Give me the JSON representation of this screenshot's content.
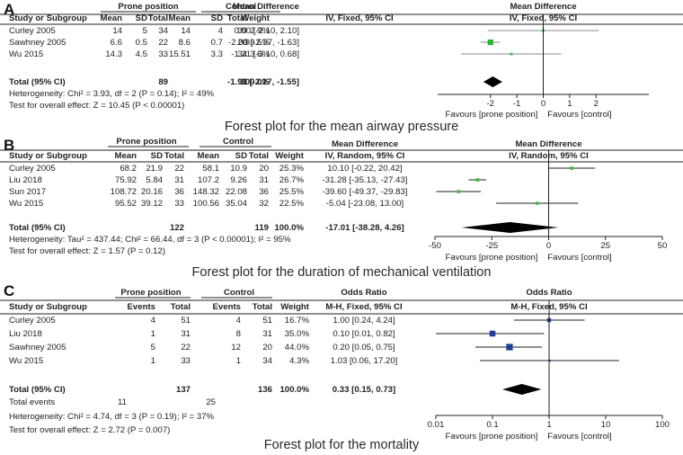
{
  "chart_data": [
    {
      "type": "table",
      "panel": "A",
      "title": "Forest plot for the mean airway pressure",
      "group_headers": [
        "Prone position",
        "Control"
      ],
      "columns": [
        "Study or Subgroup",
        "Mean",
        "SD",
        "Total",
        "Mean",
        "SD",
        "Total",
        "Weight",
        "Mean Difference"
      ],
      "method": "IV, Fixed, 95% CI",
      "rows": [
        {
          "study": "Curley 2005",
          "cells": [
            "14",
            "5",
            "34",
            "14",
            "4",
            "39",
            "2.9%",
            "0.00 [-2.10, 2.10]"
          ],
          "estimate": 0.0,
          "ci": [
            -2.1,
            2.1
          ],
          "weight": 2.9,
          "color": "#4cc04c"
        },
        {
          "study": "Sawhney 2005",
          "cells": [
            "6.6",
            "0.5",
            "22",
            "8.6",
            "0.7",
            "20",
            "93.5%",
            "-2.00 [-2.37, -1.63]"
          ],
          "estimate": -2.0,
          "ci": [
            -2.37,
            -1.63
          ],
          "weight": 93.5,
          "color": "#2ab32a"
        },
        {
          "study": "Wu 2015",
          "cells": [
            "14.3",
            "4.5",
            "33",
            "15.51",
            "3.3",
            "34",
            "3.6%",
            "-1.21 [-3.10, 0.68]"
          ],
          "estimate": -1.21,
          "ci": [
            -3.1,
            0.68
          ],
          "weight": 3.6,
          "color": "#4cc04c"
        }
      ],
      "total_row": {
        "label": "Total (95% CI)",
        "cells": [
          "",
          "",
          "89",
          "",
          "",
          "93",
          "100.0%",
          "-1.91 [-2.27, -1.55]"
        ],
        "estimate": -1.91,
        "ci": [
          -2.27,
          -1.55
        ]
      },
      "notes": [
        "Heterogeneity: Chi² = 3.93, df = 2 (P = 0.14); I² = 49%",
        "Test for overall effect: Z = 10.45 (P < 0.00001)"
      ],
      "axis": {
        "scale": "linear",
        "min": -4,
        "max": 4,
        "ticks": [
          -2,
          -1,
          0,
          1,
          2
        ],
        "tick_labels": [
          "-2",
          "-1",
          "0",
          "1",
          "2"
        ]
      },
      "favours": [
        "Favours [prone position]",
        "Favours [control]"
      ]
    },
    {
      "type": "table",
      "panel": "B",
      "title": "Forest plot for the duration of mechanical ventilation",
      "group_headers": [
        "Prone position",
        "Control"
      ],
      "columns": [
        "Study or Subgroup",
        "Mean",
        "SD",
        "Total",
        "Mean",
        "SD",
        "Total",
        "Weight",
        "Mean Difference"
      ],
      "method": "IV, Random, 95% CI",
      "rows": [
        {
          "study": "Curley 2005",
          "cells": [
            "68.2",
            "21.9",
            "22",
            "58.1",
            "10.9",
            "20",
            "25.3%",
            "10.10 [-0.22, 20.42]"
          ],
          "estimate": 10.1,
          "ci": [
            -0.22,
            20.42
          ],
          "weight": 25.3,
          "color": "#3fbf3f"
        },
        {
          "study": "Liu 2018",
          "cells": [
            "75.92",
            "5.84",
            "31",
            "107.2",
            "9.26",
            "31",
            "26.7%",
            "-31.28 [-35.13, -27.43]"
          ],
          "estimate": -31.28,
          "ci": [
            -35.13,
            -27.43
          ],
          "weight": 26.7,
          "color": "#3fbf3f"
        },
        {
          "study": "Sun 2017",
          "cells": [
            "108.72",
            "20.16",
            "36",
            "148.32",
            "22.08",
            "36",
            "25.5%",
            "-39.60 [-49.37, -29.83]"
          ],
          "estimate": -39.6,
          "ci": [
            -49.37,
            -29.83
          ],
          "weight": 25.5,
          "color": "#3fbf3f"
        },
        {
          "study": "Wu 2015",
          "cells": [
            "95.52",
            "39.12",
            "33",
            "100.56",
            "35.04",
            "32",
            "22.5%",
            "-5.04 [-23.08, 13.00]"
          ],
          "estimate": -5.04,
          "ci": [
            -23.08,
            13.0
          ],
          "weight": 22.5,
          "color": "#3fbf3f"
        }
      ],
      "total_row": {
        "label": "Total (95% CI)",
        "cells": [
          "",
          "",
          "122",
          "",
          "",
          "119",
          "100.0%",
          "-17.01 [-38.28, 4.26]"
        ],
        "estimate": -17.01,
        "ci": [
          -38.28,
          4.26
        ]
      },
      "notes": [
        "Heterogeneity: Tau² = 437.44; Chi² = 66.44, df = 3 (P < 0.00001); I² = 95%",
        "Test for overall effect: Z = 1.57 (P = 0.12)"
      ],
      "axis": {
        "scale": "linear",
        "min": -50,
        "max": 50,
        "ticks": [
          -50,
          -25,
          0,
          25,
          50
        ],
        "tick_labels": [
          "-50",
          "-25",
          "0",
          "25",
          "50"
        ]
      },
      "favours": [
        "Favours [prone position]",
        "Favours [control]"
      ]
    },
    {
      "type": "table",
      "panel": "C",
      "title": "Forest plot for the mortality",
      "group_headers": [
        "Prone position",
        "Control"
      ],
      "columns": [
        "Study or Subgroup",
        "Events",
        "Total",
        "Events",
        "Total",
        "Weight",
        "Odds Ratio"
      ],
      "method": "M-H, Fixed, 95% CI",
      "rows": [
        {
          "study": "Curley 2005",
          "cells": [
            "4",
            "51",
            "4",
            "51",
            "16.7%",
            "1.00 [0.24, 4.24]"
          ],
          "estimate": 1.0,
          "ci": [
            0.24,
            4.24
          ],
          "weight": 16.7,
          "color": "#1f3f99"
        },
        {
          "study": "Liu 2018",
          "cells": [
            "1",
            "31",
            "8",
            "31",
            "35.0%",
            "0.10 [0.01, 0.82]"
          ],
          "estimate": 0.1,
          "ci": [
            0.01,
            0.82
          ],
          "weight": 35.0,
          "color": "#1f3f99"
        },
        {
          "study": "Sawhney 2005",
          "cells": [
            "5",
            "22",
            "12",
            "20",
            "44.0%",
            "0.20 [0.05, 0.75]"
          ],
          "estimate": 0.2,
          "ci": [
            0.05,
            0.75
          ],
          "weight": 44.0,
          "color": "#1f3f99"
        },
        {
          "study": "Wu 2015",
          "cells": [
            "1",
            "33",
            "1",
            "34",
            "4.3%",
            "1.03 [0.06, 17.20]"
          ],
          "estimate": 1.03,
          "ci": [
            0.06,
            17.2
          ],
          "weight": 4.3,
          "color": "#1f3f99"
        }
      ],
      "total_row": {
        "label": "Total (95% CI)",
        "cells": [
          "137",
          "",
          "136",
          "100.0%",
          "0.33 [0.15, 0.73]"
        ],
        "estimate": 0.33,
        "ci": [
          0.15,
          0.73
        ]
      },
      "total_events": {
        "label": "Total events",
        "prone": "11",
        "control": "25"
      },
      "notes": [
        "Heterogeneity: Chi² = 4.74, df = 3 (P = 0.19); I² = 37%",
        "Test for overall effect: Z = 2.72 (P = 0.007)"
      ],
      "axis": {
        "scale": "log",
        "min": 0.01,
        "max": 100,
        "ticks": [
          0.01,
          0.1,
          1,
          10,
          100
        ],
        "tick_labels": [
          "0.01",
          "0.1",
          "1",
          "10",
          "100"
        ]
      },
      "favours": [
        "Favours [prone position]",
        "Favours [control]"
      ]
    }
  ]
}
